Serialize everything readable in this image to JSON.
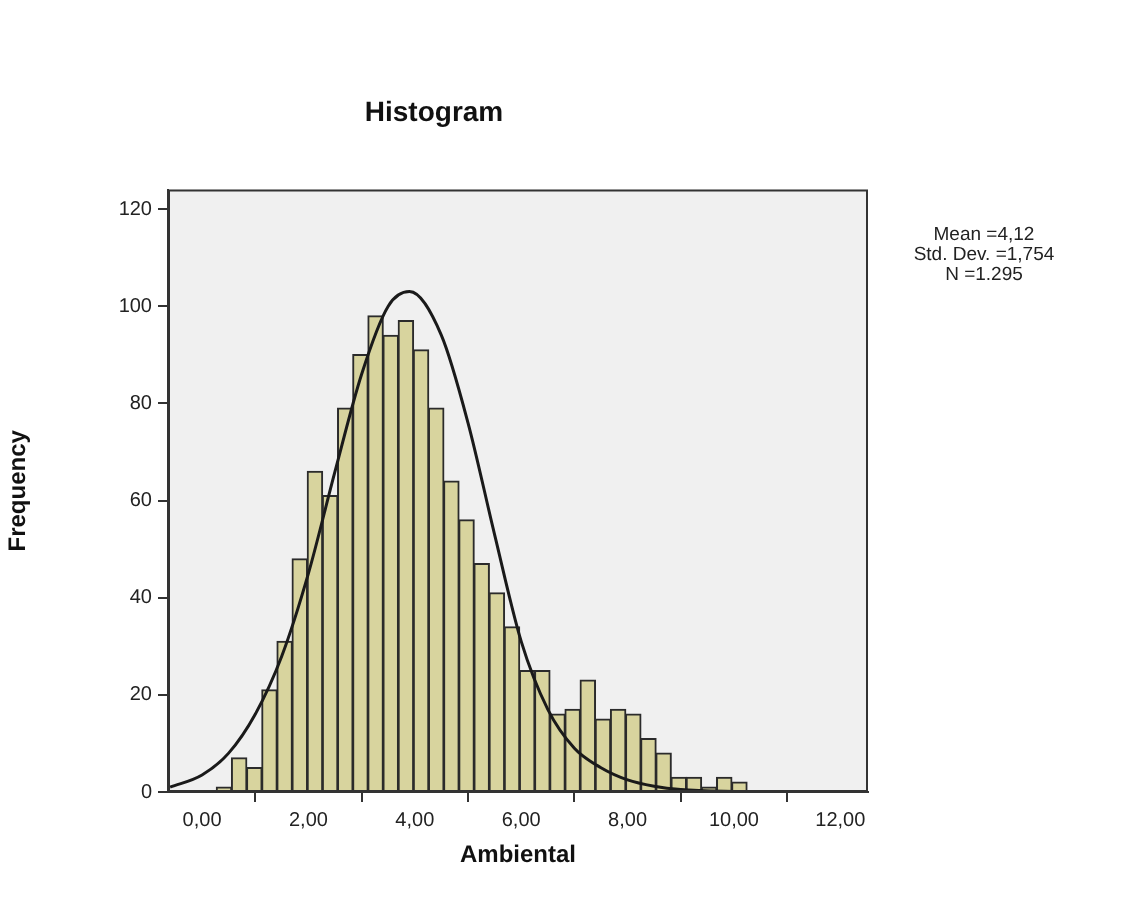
{
  "chart_data": {
    "type": "histogram",
    "title": "Histogram",
    "xlabel": "Ambiental",
    "ylabel": "Frequency",
    "xlim": [
      -0.64,
      12.52
    ],
    "ylim": [
      0,
      124
    ],
    "xticks": [
      {
        "value": 0,
        "label": "0,00"
      },
      {
        "value": 2,
        "label": "2,00"
      },
      {
        "value": 4,
        "label": "4,00"
      },
      {
        "value": 6,
        "label": "6,00"
      },
      {
        "value": 8,
        "label": "8,00"
      },
      {
        "value": 10,
        "label": "10,00"
      },
      {
        "value": 12,
        "label": "12,00"
      }
    ],
    "yticks": [
      0,
      20,
      40,
      60,
      80,
      100,
      120
    ],
    "series": [
      {
        "color": "#d8d49e",
        "bins": [
          0.27,
          0.555,
          0.84,
          1.125,
          1.41,
          1.695,
          1.98,
          2.265,
          2.55,
          2.835,
          3.12,
          3.405,
          3.69,
          3.975,
          4.26,
          4.545,
          4.83,
          5.115,
          5.4,
          5.685,
          5.97,
          6.255,
          6.54,
          6.825,
          7.11,
          7.395,
          7.68,
          7.965,
          8.25,
          8.535,
          8.82,
          9.105,
          9.39,
          9.675,
          9.96,
          10.245
        ],
        "values": [
          1,
          7,
          5,
          21,
          31,
          48,
          66,
          61,
          79,
          90,
          98,
          94,
          97,
          91,
          79,
          64,
          56,
          47,
          41,
          34,
          25,
          25,
          16,
          17,
          23,
          15,
          17,
          16,
          11,
          8,
          3,
          3,
          1,
          3,
          2
        ]
      },
      {
        "type": "line",
        "color": "#1a1a1a",
        "marker": "none",
        "line_style": "solid",
        "x": [
          -0.6,
          0,
          0.5,
          1,
          1.5,
          2,
          2.5,
          3,
          3.5,
          3.9,
          4.5,
          5,
          5.5,
          6,
          6.5,
          7,
          7.5,
          8,
          8.5,
          9,
          10,
          11,
          12.5
        ],
        "values": [
          1,
          3.5,
          8,
          16,
          28,
          45,
          66,
          86,
          100,
          103,
          94,
          76,
          53,
          31,
          17,
          9,
          5,
          2.5,
          1.2,
          0.5,
          0.1,
          0,
          0
        ]
      }
    ],
    "annotations": [
      "Mean =4,12",
      "Std. Dev. =1,754",
      "N =1.295"
    ]
  }
}
